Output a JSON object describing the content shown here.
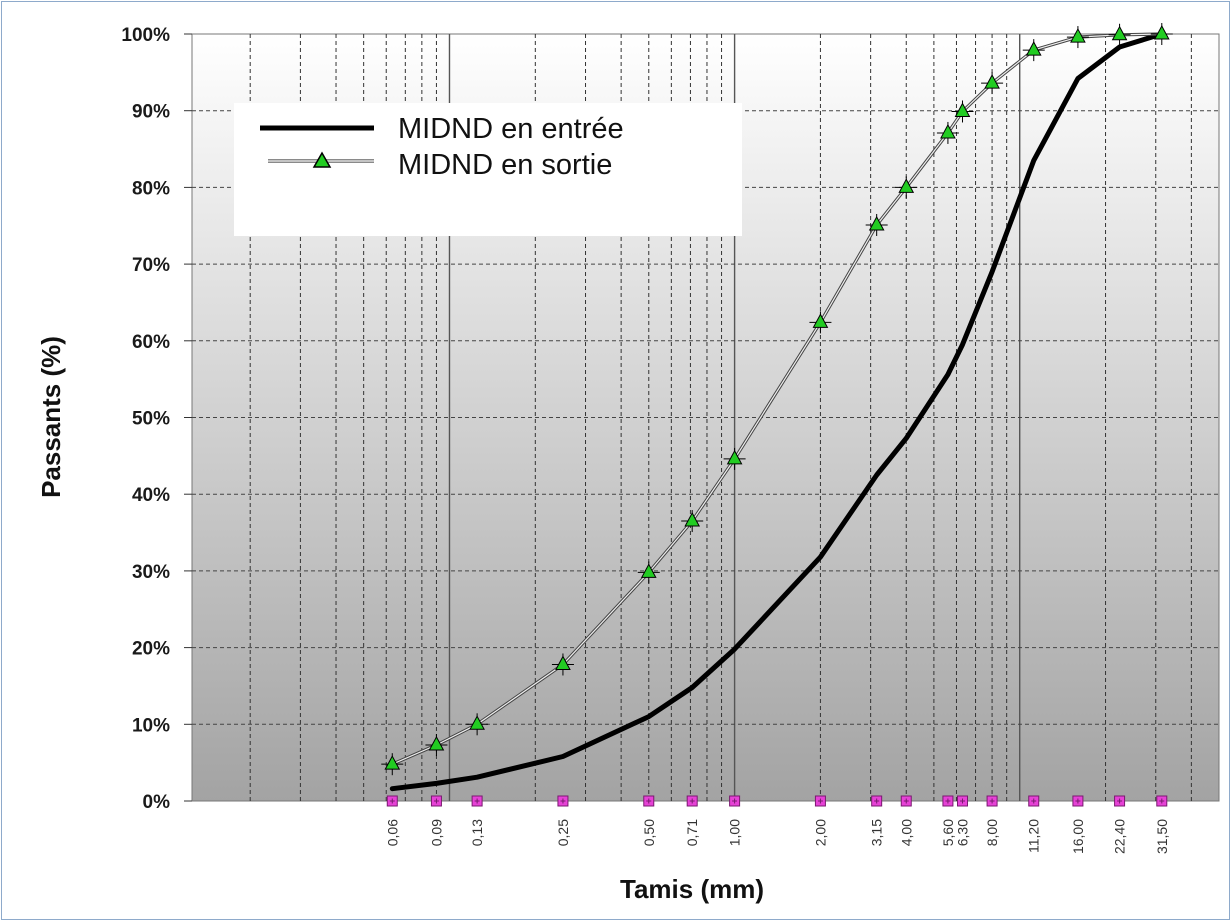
{
  "chart_data": {
    "type": "line",
    "title": "",
    "xlabel": "Tamis (mm)",
    "ylabel": "Passants (%)",
    "x_scale": "log",
    "xlim": [
      0.0125,
      50
    ],
    "ylim": [
      0,
      100
    ],
    "grid": true,
    "legend_position": "top-left",
    "y_tick_labels": [
      "0%",
      "10%",
      "20%",
      "30%",
      "40%",
      "50%",
      "60%",
      "70%",
      "80%",
      "90%",
      "100%"
    ],
    "x_tick_labels": [
      "0,06",
      "0,09",
      "0,13",
      "0,25",
      "0,50",
      "0,71",
      "1,00",
      "2,00",
      "3,15",
      "4,00",
      "5,60",
      "6,30",
      "8,00",
      "11,20",
      "16,00",
      "22,40",
      "31,50"
    ],
    "x": [
      0.063,
      0.09,
      0.125,
      0.25,
      0.5,
      0.71,
      1.0,
      2.0,
      3.15,
      4.0,
      5.6,
      6.3,
      8.0,
      11.2,
      16.0,
      22.4,
      31.5
    ],
    "series": [
      {
        "name": "MIDND en entrée",
        "color": "#000000",
        "marker": "none",
        "values": [
          1.6,
          2.3,
          3.1,
          5.8,
          11.0,
          14.8,
          19.8,
          31.8,
          42.5,
          47.3,
          55.6,
          59.5,
          69.0,
          83.5,
          94.2,
          98.3,
          100.0
        ]
      },
      {
        "name": "MIDND en sortie",
        "color": "#22cc22",
        "marker": "triangle",
        "values": [
          4.8,
          7.3,
          10.0,
          17.8,
          29.8,
          36.5,
          44.6,
          62.4,
          75.1,
          80.0,
          87.1,
          89.9,
          93.6,
          97.9,
          99.6,
          99.9,
          100.0
        ]
      }
    ]
  }
}
